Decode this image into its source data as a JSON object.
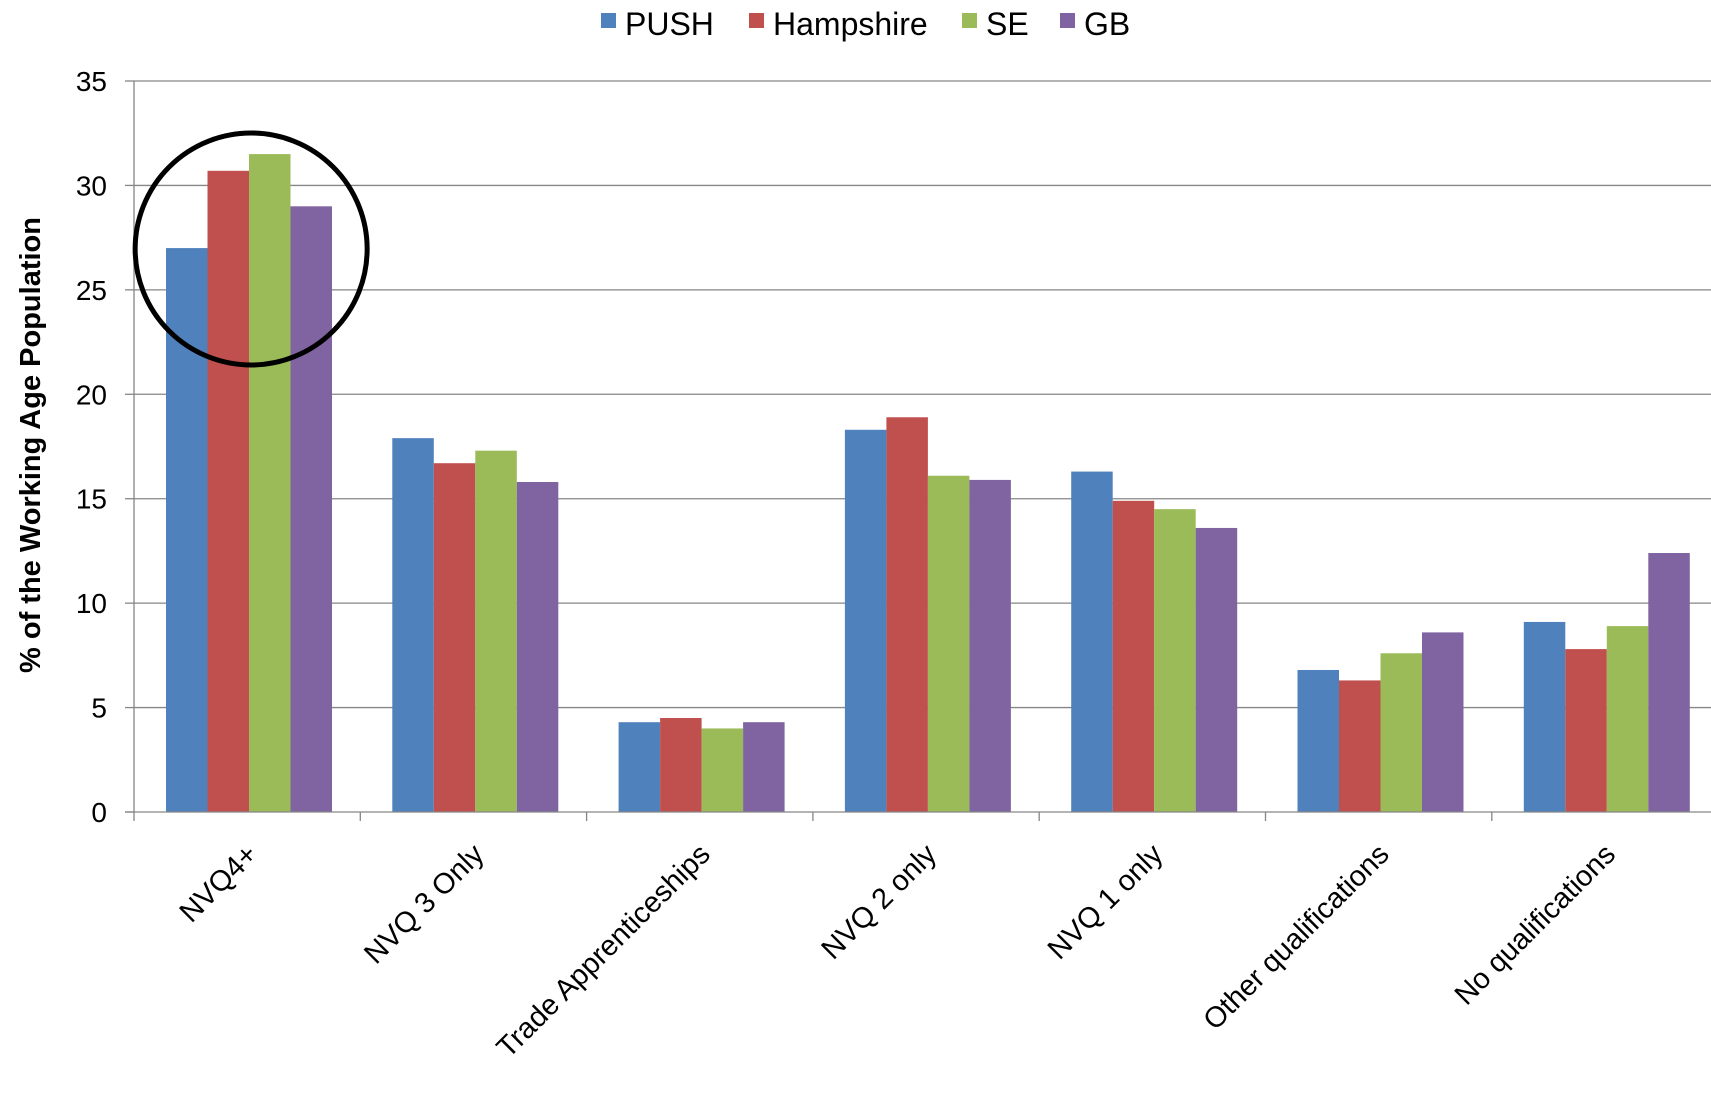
{
  "chart_data": {
    "type": "bar",
    "title": "",
    "xlabel": "",
    "ylabel": "% of the Working Age Population",
    "ylim": [
      0,
      35
    ],
    "yticks": [
      0,
      5,
      10,
      15,
      20,
      25,
      30,
      35
    ],
    "grid": true,
    "legend_position": "top",
    "categories": [
      "NVQ4+",
      "NVQ 3 Only",
      "Trade Apprenticeships",
      "NVQ 2 only",
      "NVQ 1 only",
      "Other qualifications",
      "No qualifications"
    ],
    "series": [
      {
        "name": "PUSH",
        "color": "#4F81BD",
        "values": [
          27.0,
          17.9,
          4.3,
          18.3,
          16.3,
          6.8,
          9.1
        ]
      },
      {
        "name": "Hampshire",
        "color": "#C0504D",
        "values": [
          30.7,
          16.7,
          4.5,
          18.9,
          14.9,
          6.3,
          7.8
        ]
      },
      {
        "name": "SE",
        "color": "#9BBB59",
        "values": [
          31.5,
          17.3,
          4.0,
          16.1,
          14.5,
          7.6,
          8.9
        ]
      },
      {
        "name": "GB",
        "color": "#8064A2",
        "values": [
          29.0,
          15.8,
          4.3,
          15.9,
          13.6,
          8.6,
          12.4
        ]
      }
    ],
    "annotation": {
      "type": "circle",
      "target_category": "NVQ4+"
    }
  }
}
